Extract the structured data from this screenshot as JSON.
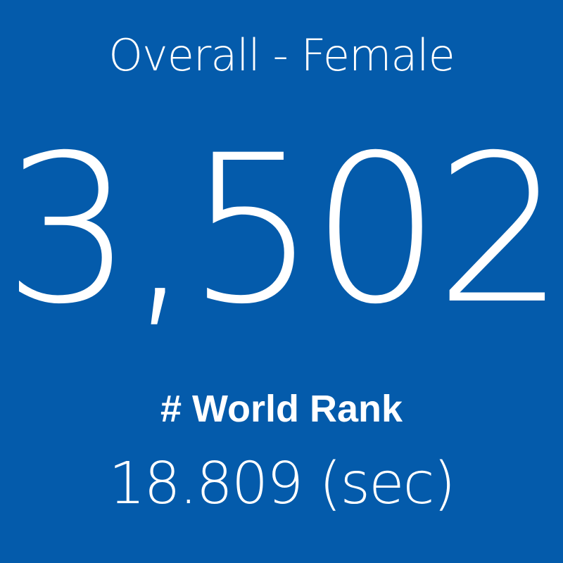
{
  "tile": {
    "title": "Overall - Female",
    "value": "3,502",
    "label": "# World Rank",
    "time": "18.809 (sec)"
  }
}
